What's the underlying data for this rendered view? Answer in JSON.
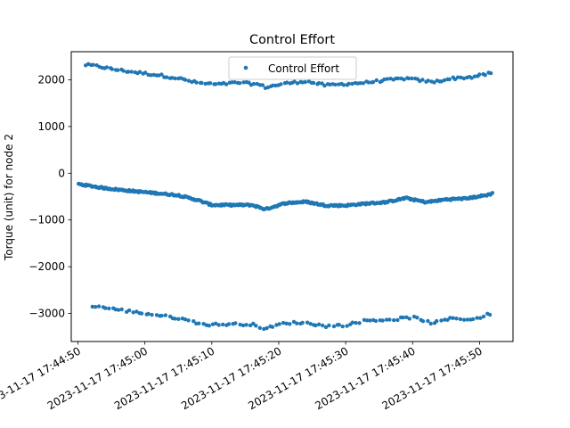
{
  "chart_data": {
    "type": "scatter",
    "title": "Control Effort",
    "xlabel": "",
    "ylabel": "Torque (unit) for node 2",
    "x_axis_kind": "datetime",
    "xlim": [
      "2023-11-17T17:44:49",
      "2023-11-17T17:45:55"
    ],
    "ylim": [
      -3600,
      2600
    ],
    "x_ticks": [
      "2023-11-17 17:44:50",
      "2023-11-17 17:45:00",
      "2023-11-17 17:45:10",
      "2023-11-17 17:45:20",
      "2023-11-17 17:45:30",
      "2023-11-17 17:45:40",
      "2023-11-17 17:45:50"
    ],
    "y_ticks": [
      2000,
      1000,
      0,
      -1000,
      -2000,
      -3000
    ],
    "y_tick_labels": [
      "2000",
      "1000",
      "0",
      "−1000",
      "−2000",
      "−3000"
    ],
    "grid": false,
    "legend_position": "top-center",
    "series": [
      {
        "name": "Control Effort",
        "color": "#1f77b4",
        "bands": [
          {
            "anchors": [
              [
                "2023-11-17T17:44:51",
                2320
              ],
              [
                "2023-11-17T17:44:53",
                2290
              ],
              [
                "2023-11-17T17:44:55",
                2230
              ],
              [
                "2023-11-17T17:44:58",
                2170
              ],
              [
                "2023-11-17T17:45:02",
                2100
              ],
              [
                "2023-11-17T17:45:05",
                2030
              ],
              [
                "2023-11-17T17:45:08",
                1930
              ],
              [
                "2023-11-17T17:45:11",
                1900
              ],
              [
                "2023-11-17T17:45:14",
                1940
              ],
              [
                "2023-11-17T17:45:17",
                1900
              ],
              [
                "2023-11-17T17:45:18",
                1840
              ],
              [
                "2023-11-17T17:45:21",
                1920
              ],
              [
                "2023-11-17T17:45:24",
                1970
              ],
              [
                "2023-11-17T17:45:27",
                1880
              ],
              [
                "2023-11-17T17:45:30",
                1910
              ],
              [
                "2023-11-17T17:45:33",
                1940
              ],
              [
                "2023-11-17T17:45:36",
                1990
              ],
              [
                "2023-11-17T17:45:39",
                2030
              ],
              [
                "2023-11-17T17:45:43",
                1950
              ],
              [
                "2023-11-17T17:45:46",
                2030
              ],
              [
                "2023-11-17T17:45:49",
                2060
              ],
              [
                "2023-11-17T17:45:52",
                2150
              ]
            ],
            "count": 150,
            "jitter": 25
          },
          {
            "anchors": [
              [
                "2023-11-17T17:44:50",
                -230
              ],
              [
                "2023-11-17T17:44:54",
                -320
              ],
              [
                "2023-11-17T17:44:58",
                -380
              ],
              [
                "2023-11-17T17:45:02",
                -430
              ],
              [
                "2023-11-17T17:45:05",
                -470
              ],
              [
                "2023-11-17T17:45:08",
                -580
              ],
              [
                "2023-11-17T17:45:10",
                -680
              ],
              [
                "2023-11-17T17:45:13",
                -680
              ],
              [
                "2023-11-17T17:45:16",
                -680
              ],
              [
                "2023-11-17T17:45:18",
                -770
              ],
              [
                "2023-11-17T17:45:21",
                -640
              ],
              [
                "2023-11-17T17:45:24",
                -610
              ],
              [
                "2023-11-17T17:45:27",
                -690
              ],
              [
                "2023-11-17T17:45:30",
                -690
              ],
              [
                "2023-11-17T17:45:33",
                -650
              ],
              [
                "2023-11-17T17:45:36",
                -620
              ],
              [
                "2023-11-17T17:45:39",
                -530
              ],
              [
                "2023-11-17T17:45:42",
                -620
              ],
              [
                "2023-11-17T17:45:45",
                -560
              ],
              [
                "2023-11-17T17:45:48",
                -540
              ],
              [
                "2023-11-17T17:45:51",
                -470
              ],
              [
                "2023-11-17T17:45:52",
                -430
              ]
            ],
            "count": 400,
            "jitter": 18
          },
          {
            "anchors": [
              [
                "2023-11-17T17:44:52",
                -2830
              ],
              [
                "2023-11-17T17:44:56",
                -2920
              ],
              [
                "2023-11-17T17:45:00",
                -3000
              ],
              [
                "2023-11-17T17:45:05",
                -3100
              ],
              [
                "2023-11-17T17:45:09",
                -3240
              ],
              [
                "2023-11-17T17:45:13",
                -3230
              ],
              [
                "2023-11-17T17:45:16",
                -3230
              ],
              [
                "2023-11-17T17:45:18",
                -3330
              ],
              [
                "2023-11-17T17:45:21",
                -3200
              ],
              [
                "2023-11-17T17:45:24",
                -3200
              ],
              [
                "2023-11-17T17:45:27",
                -3270
              ],
              [
                "2023-11-17T17:45:30",
                -3250
              ],
              [
                "2023-11-17T17:45:33",
                -3150
              ],
              [
                "2023-11-17T17:45:37",
                -3130
              ],
              [
                "2023-11-17T17:45:40",
                -3080
              ],
              [
                "2023-11-17T17:45:43",
                -3210
              ],
              [
                "2023-11-17T17:45:46",
                -3100
              ],
              [
                "2023-11-17T17:45:49",
                -3130
              ],
              [
                "2023-11-17T17:45:52",
                -2990
              ]
            ],
            "count": 120,
            "jitter": 25
          }
        ]
      }
    ]
  }
}
